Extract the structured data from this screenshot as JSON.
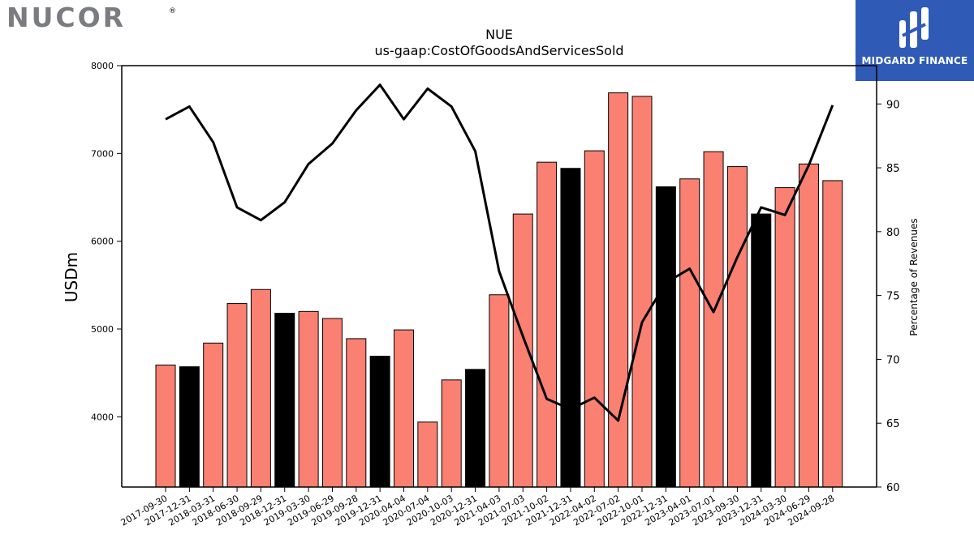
{
  "logos": {
    "left": "NUCOR",
    "left_mark": "®",
    "right": "MIDGARD FINANCE",
    "left_color": "#7a7c80",
    "right_bg": "#2f5bb7"
  },
  "chart_data": {
    "type": "bar",
    "title": "NUE",
    "subtitle": "us-gaap:CostOfGoodsAndServicesSold",
    "ylabel": "USDm",
    "y2label": "Percentage of Revenues",
    "ylim": [
      3200,
      8000
    ],
    "y2lim": [
      60,
      93
    ],
    "yticks": [
      4000,
      5000,
      6000,
      7000,
      8000
    ],
    "y2ticks": [
      60,
      65,
      70,
      75,
      80,
      85,
      90
    ],
    "categories": [
      "2017-09-30",
      "2017-12-31",
      "2018-03-31",
      "2018-06-30",
      "2018-09-29",
      "2018-12-31",
      "2019-03-30",
      "2019-06-29",
      "2019-09-28",
      "2019-12-31",
      "2020-04-04",
      "2020-07-04",
      "2020-10-03",
      "2020-12-31",
      "2021-04-03",
      "2021-07-03",
      "2021-10-02",
      "2021-12-31",
      "2022-04-02",
      "2022-07-02",
      "2022-10-01",
      "2022-12-31",
      "2023-04-01",
      "2023-07-01",
      "2023-09-30",
      "2023-12-31",
      "2024-03-30",
      "2024-06-29",
      "2024-09-28"
    ],
    "series": [
      {
        "type": "bar",
        "values": [
          4590,
          4570,
          4840,
          5290,
          5450,
          5180,
          5200,
          5120,
          4890,
          4690,
          4990,
          3940,
          4420,
          4540,
          5390,
          6310,
          6900,
          6830,
          7030,
          7690,
          7650,
          6620,
          6710,
          7020,
          6850,
          6310,
          6610,
          6880,
          6690
        ],
        "highlight": [
          false,
          true,
          false,
          false,
          false,
          true,
          false,
          false,
          false,
          true,
          false,
          false,
          false,
          true,
          false,
          false,
          false,
          true,
          false,
          false,
          false,
          true,
          false,
          false,
          false,
          true,
          false,
          false,
          false
        ]
      },
      {
        "type": "line",
        "axis": "right",
        "values": [
          88.8,
          89.8,
          87.0,
          81.9,
          80.9,
          82.3,
          85.3,
          86.9,
          89.5,
          91.5,
          88.8,
          91.2,
          89.8,
          86.3,
          76.9,
          71.8,
          66.9,
          66.1,
          67.0,
          65.2,
          72.9,
          76.0,
          77.1,
          73.7,
          78.0,
          81.9,
          81.3,
          85.2,
          89.9
        ]
      }
    ],
    "colors": {
      "bar": "#fa8072",
      "bar_highlight": "#000000",
      "line": "#000000"
    },
    "grid": false
  }
}
